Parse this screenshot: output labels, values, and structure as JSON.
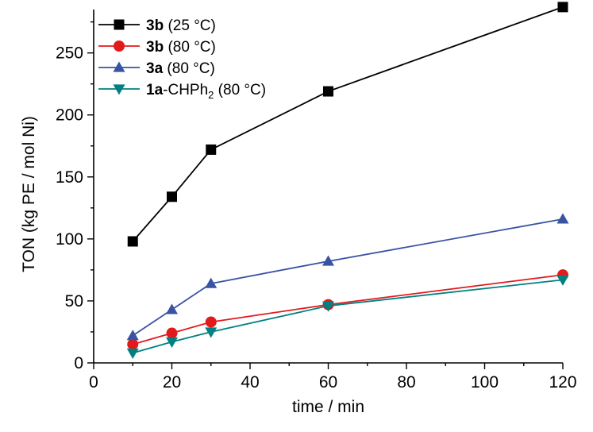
{
  "chart_data": {
    "type": "line",
    "xlabel": "time / min",
    "ylabel": "TON (kg PE / mol Ni)",
    "xlim": [
      0,
      120
    ],
    "ylim": [
      0,
      285
    ],
    "x_ticks": [
      0,
      20,
      40,
      60,
      80,
      100,
      120
    ],
    "y_ticks": [
      0,
      50,
      100,
      150,
      200,
      250
    ],
    "x": [
      10,
      20,
      30,
      60,
      120
    ],
    "grid": false,
    "legend_position": "top-left",
    "series": [
      {
        "name": "3b (25 °C)",
        "label_bold": "3b",
        "label_rest": " (25 °C)",
        "marker": "square",
        "color": "#000000",
        "values": [
          98,
          134,
          172,
          219,
          287
        ]
      },
      {
        "name": "3b (80 °C)",
        "label_bold": "3b",
        "label_rest": " (80 °C)",
        "marker": "circle",
        "color": "#e31a1c",
        "values": [
          15,
          24,
          33,
          47,
          71
        ]
      },
      {
        "name": "3a (80 °C)",
        "label_bold": "3a",
        "label_rest": " (80 °C)",
        "marker": "triangle-up",
        "color": "#3953a4",
        "values": [
          22,
          43,
          64,
          82,
          116
        ]
      },
      {
        "name": "1a-CHPh2 (80 °C)",
        "label_bold": "1a",
        "label_rest": "-CHPh",
        "label_sub": "2",
        "label_tail": " (80 °C)",
        "marker": "triangle-down",
        "color": "#008080",
        "values": [
          8,
          17,
          25,
          46,
          67
        ]
      }
    ]
  }
}
